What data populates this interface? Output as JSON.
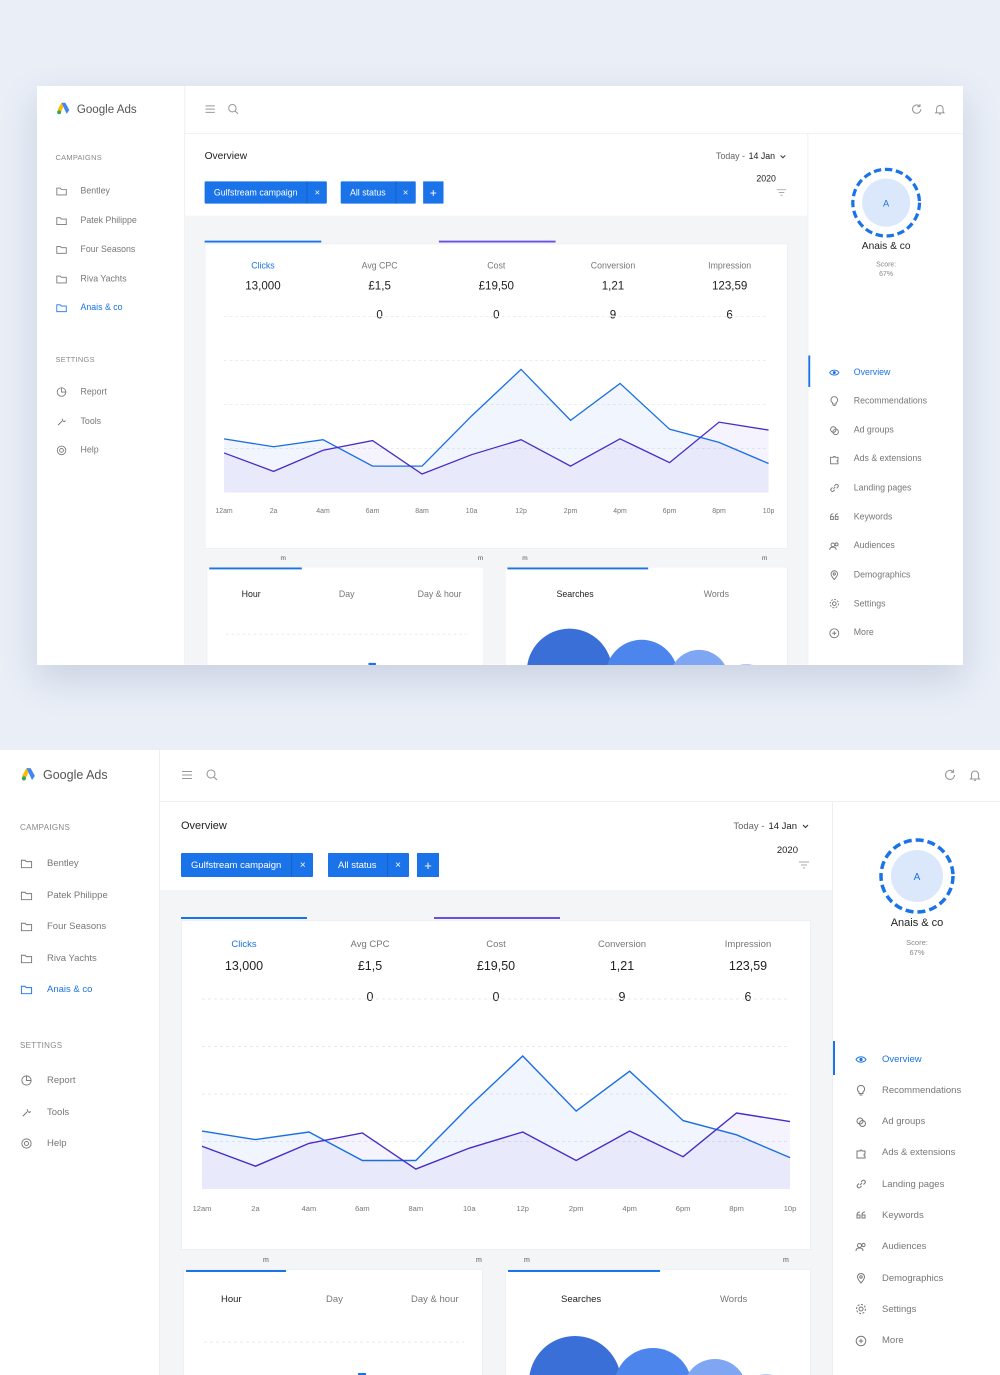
{
  "app": {
    "name": "Google Ads"
  },
  "campaigns": {
    "label": "CAMPAIGNS",
    "items": [
      {
        "label": "Bentley",
        "icon": "folder-icon",
        "active": false
      },
      {
        "label": "Patek Philippe",
        "icon": "folder-icon",
        "active": false
      },
      {
        "label": "Four Seasons",
        "icon": "folder-icon",
        "active": false
      },
      {
        "label": "Riva Yachts",
        "icon": "folder-icon",
        "active": false
      },
      {
        "label": "Anais & co",
        "icon": "folder-icon",
        "active": true
      }
    ]
  },
  "settings": {
    "label": "SETTINGS",
    "items": [
      {
        "label": "Report",
        "icon": "pie-chart-icon"
      },
      {
        "label": "Tools",
        "icon": "wrench-icon"
      },
      {
        "label": "Help",
        "icon": "lifebuoy-icon"
      }
    ]
  },
  "topbar": {
    "left_icons": [
      "menu-icon",
      "search-icon"
    ],
    "right_icons": [
      "refresh-icon",
      "bell-icon"
    ]
  },
  "overview": {
    "title": "Overview",
    "date_prefix": "Today - ",
    "date": "14 Jan",
    "year": "2020",
    "filters": [
      {
        "label": "Gulfstream campaign"
      },
      {
        "label": "All status"
      }
    ],
    "add_label": "+",
    "remove_label": "×"
  },
  "metrics": [
    {
      "label": "Clicks",
      "value": "13,000",
      "sub": "",
      "active": true
    },
    {
      "label": "Avg CPC",
      "value": "£1,5",
      "sub": "0",
      "active": false
    },
    {
      "label": "Cost",
      "value": "£19,50",
      "sub": "0",
      "active": false
    },
    {
      "label": "Conversion",
      "value": "1,21",
      "sub": "9",
      "active": false
    },
    {
      "label": "Impression",
      "value": "123,59",
      "sub": "6",
      "active": false
    }
  ],
  "colors": {
    "accent": "#1a73e8",
    "series_a": "#1a6fe0",
    "series_b": "#4a2cc4"
  },
  "chart_data": {
    "type": "line",
    "x": [
      "12am",
      "2a",
      "4am",
      "6am",
      "8am",
      "10a",
      "12p",
      "2pm",
      "4pm",
      "6pm",
      "8pm",
      "10p"
    ],
    "series": [
      {
        "values": [
          61,
          52,
          60,
          30,
          30,
          87,
          140,
          82,
          124,
          72,
          57,
          33
        ]
      },
      {
        "values": [
          45,
          24,
          48,
          59,
          21,
          43,
          60,
          30,
          61,
          34,
          80,
          71
        ]
      }
    ],
    "ylim": [
      0,
      200
    ],
    "grid": true
  },
  "bottom_left": {
    "tabs": [
      "Hour",
      "Day",
      "Day & hour"
    ],
    "active": 0,
    "axis_marks": [
      "m",
      "m"
    ]
  },
  "bottom_right": {
    "tabs": [
      "Searches",
      "Words"
    ],
    "active": 0,
    "axis_marks": [
      "m",
      "m"
    ]
  },
  "account": {
    "initial": "A",
    "name": "Anais & co",
    "score_label": "Score:",
    "score": "67%",
    "score_value": 0.67
  },
  "right_nav": [
    {
      "label": "Overview",
      "icon": "eye-icon",
      "active": true
    },
    {
      "label": "Recommendations",
      "icon": "lightbulb-icon",
      "active": false
    },
    {
      "label": "Ad groups",
      "icon": "ad-groups-icon",
      "active": false
    },
    {
      "label": "Ads & extensions",
      "icon": "puzzle-icon",
      "active": false
    },
    {
      "label": "Landing pages",
      "icon": "link-icon",
      "active": false
    },
    {
      "label": "Keywords",
      "icon": "quote-icon",
      "active": false
    },
    {
      "label": "Audiences",
      "icon": "people-icon",
      "active": false
    },
    {
      "label": "Demographics",
      "icon": "pin-icon",
      "active": false
    },
    {
      "label": "Settings",
      "icon": "gear-icon",
      "active": false
    },
    {
      "label": "More",
      "icon": "plus-circle-icon",
      "active": false
    }
  ]
}
